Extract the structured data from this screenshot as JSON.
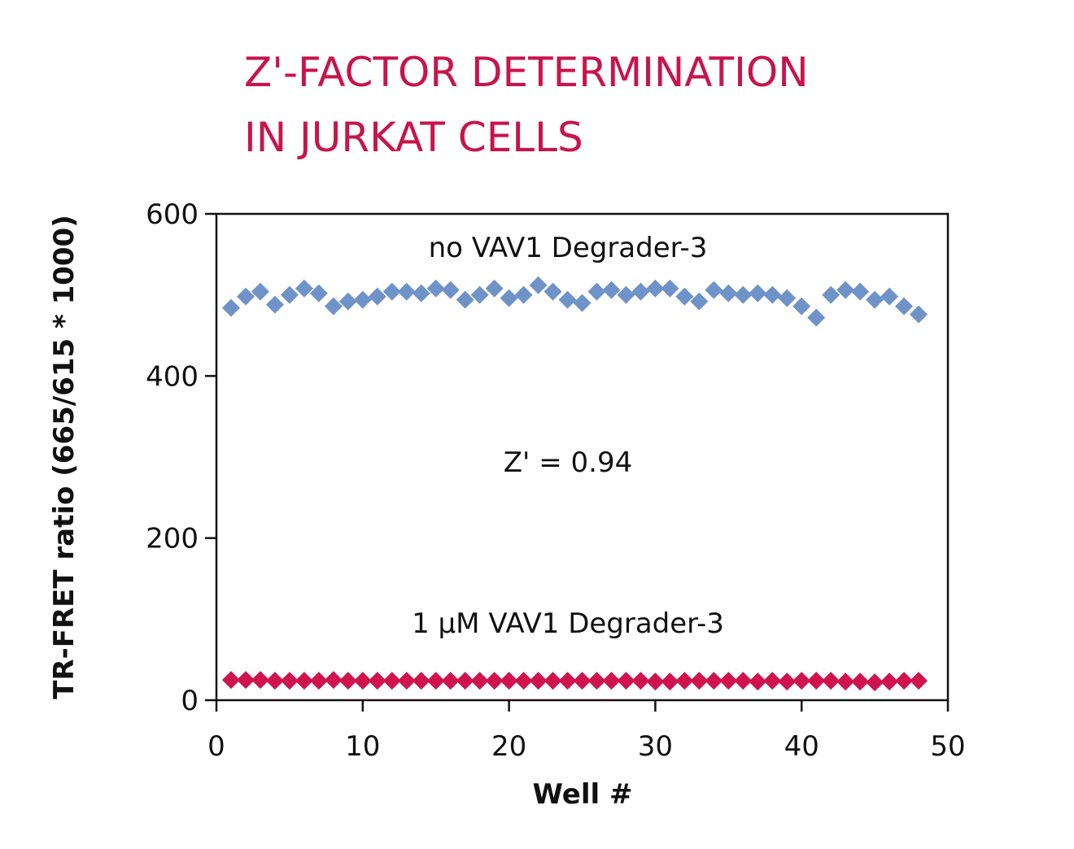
{
  "chart_data": {
    "type": "scatter",
    "title": [
      "Z'-FACTOR DETERMINATION",
      "IN JURKAT CELLS"
    ],
    "xlabel": "Well #",
    "ylabel": "TR-FRET ratio (665/615 * 1000)",
    "annotations": [
      "no VAV1 Degrader-3",
      "Z' = 0.94",
      "1 µM VAV1 Degrader-3"
    ],
    "xlim": [
      0,
      50
    ],
    "xticks": [
      0,
      10,
      20,
      30,
      40,
      50
    ],
    "ylim": [
      0,
      600
    ],
    "yticks": [
      0,
      200,
      400,
      600
    ],
    "x": [
      1,
      2,
      3,
      4,
      5,
      6,
      7,
      8,
      9,
      10,
      11,
      12,
      13,
      14,
      15,
      16,
      17,
      18,
      19,
      20,
      21,
      22,
      23,
      24,
      25,
      26,
      27,
      28,
      29,
      30,
      31,
      32,
      33,
      34,
      35,
      36,
      37,
      38,
      39,
      40,
      41,
      42,
      43,
      44,
      45,
      46,
      47,
      48
    ],
    "series": [
      {
        "name": "no VAV1 Degrader-3",
        "color": "#6f93c8",
        "values": [
          484,
          498,
          504,
          488,
          500,
          508,
          502,
          486,
          492,
          494,
          498,
          504,
          504,
          502,
          508,
          506,
          494,
          500,
          508,
          496,
          500,
          512,
          504,
          494,
          490,
          504,
          506,
          500,
          504,
          508,
          508,
          498,
          492,
          506,
          502,
          500,
          502,
          500,
          496,
          486,
          472,
          500,
          506,
          504,
          494,
          498,
          486,
          476
        ]
      },
      {
        "name": "1 µM VAV1 Degrader-3",
        "color": "#d0134f",
        "values": [
          25,
          25,
          25,
          24,
          24,
          24,
          24,
          25,
          24,
          24,
          24,
          24,
          24,
          24,
          24,
          24,
          24,
          24,
          24,
          24,
          24,
          24,
          24,
          24,
          24,
          24,
          24,
          24,
          24,
          23,
          23,
          24,
          24,
          24,
          24,
          24,
          23,
          24,
          23,
          24,
          24,
          24,
          23,
          23,
          22,
          23,
          24,
          24
        ]
      }
    ]
  }
}
